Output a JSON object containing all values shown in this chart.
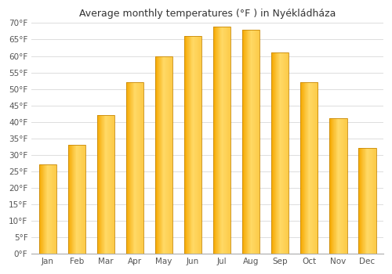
{
  "months": [
    "Jan",
    "Feb",
    "Mar",
    "Apr",
    "May",
    "Jun",
    "Jul",
    "Aug",
    "Sep",
    "Oct",
    "Nov",
    "Dec"
  ],
  "values": [
    27,
    33,
    42,
    52,
    60,
    66,
    69,
    68,
    61,
    52,
    41,
    32
  ],
  "title": "Average monthly temperatures (°F ) in Nyékládháza",
  "bar_color_dark": "#F5A800",
  "bar_color_light": "#FFD966",
  "bar_color_edge": "#C8890A",
  "ylim": [
    0,
    70
  ],
  "yticks": [
    0,
    5,
    10,
    15,
    20,
    25,
    30,
    35,
    40,
    45,
    50,
    55,
    60,
    65,
    70
  ],
  "ytick_labels": [
    "0°F",
    "5°F",
    "10°F",
    "15°F",
    "20°F",
    "25°F",
    "30°F",
    "35°F",
    "40°F",
    "45°F",
    "50°F",
    "55°F",
    "60°F",
    "65°F",
    "70°F"
  ],
  "bg_color": "#ffffff",
  "grid_color": "#dddddd",
  "title_fontsize": 9,
  "tick_fontsize": 7.5
}
